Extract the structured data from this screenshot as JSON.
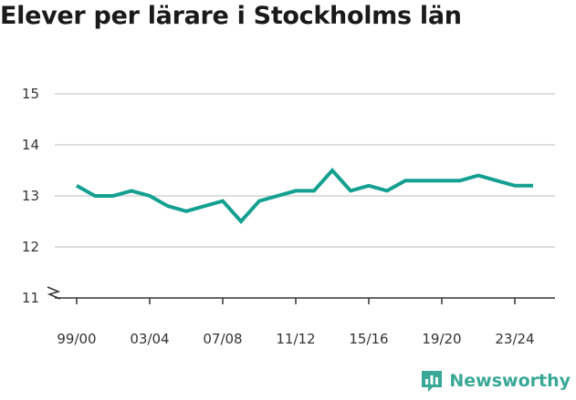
{
  "title": "Elever per lärare i Stockholms län",
  "brand": {
    "name": "Newsworthy",
    "logo_icon": "newsworthy-logo-icon"
  },
  "colors": {
    "line": "#14a090",
    "grid": "#d4d4d4",
    "axis": "#333333",
    "brand": "#3aa897"
  },
  "chart_data": {
    "type": "line",
    "title": "Elever per lärare i Stockholms län",
    "xlabel": "",
    "ylabel": "",
    "categories": [
      "99/00",
      "00/01",
      "01/02",
      "02/03",
      "03/04",
      "04/05",
      "05/06",
      "06/07",
      "07/08",
      "08/09",
      "09/10",
      "10/11",
      "11/12",
      "12/13",
      "13/14",
      "14/15",
      "15/16",
      "16/17",
      "17/18",
      "18/19",
      "19/20",
      "20/21",
      "21/22",
      "22/23",
      "23/24",
      "24/25"
    ],
    "x_tick_labels": [
      "99/00",
      "03/04",
      "07/08",
      "11/12",
      "15/16",
      "19/20",
      "23/24"
    ],
    "series": [
      {
        "values": [
          13.2,
          13.0,
          13.0,
          13.1,
          13.0,
          12.8,
          12.7,
          12.8,
          12.9,
          12.5,
          12.9,
          13.0,
          13.1,
          13.1,
          13.5,
          13.1,
          13.2,
          13.1,
          13.3,
          13.3,
          13.3,
          13.3,
          13.4,
          13.3,
          13.2,
          13.2
        ]
      }
    ],
    "y_ticks": [
      11,
      12,
      13,
      14,
      15
    ],
    "ylim": [
      11,
      15
    ],
    "y_axis_break": true,
    "grid": true,
    "legend": "none"
  }
}
